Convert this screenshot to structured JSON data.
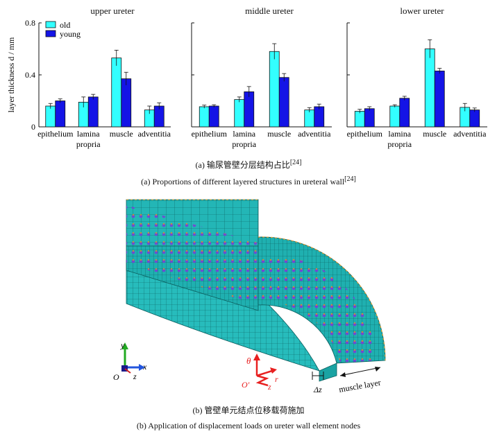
{
  "figure_a": {
    "caption_cn": "(a) 输尿管壁分层结构占比",
    "caption_cn_ref": "[24]",
    "caption_en": "(a) Proportions of different layered structures in ureteral wall",
    "caption_en_ref": "[24]"
  },
  "chart_data": [
    {
      "type": "bar",
      "title": "upper ureter",
      "ylabel": "layer thickness d / mm",
      "ylim": [
        0,
        0.8
      ],
      "yticks": [
        "0",
        "0.4",
        "0.8"
      ],
      "categories": [
        "epithelium",
        "lamina propria",
        "muscle",
        "adventitia"
      ],
      "series": [
        {
          "name": "old",
          "values": [
            0.16,
            0.19,
            0.53,
            0.13
          ],
          "errors": [
            0.02,
            0.04,
            0.06,
            0.03
          ]
        },
        {
          "name": "young",
          "values": [
            0.2,
            0.23,
            0.37,
            0.16
          ],
          "errors": [
            0.015,
            0.02,
            0.05,
            0.025
          ]
        }
      ],
      "legend": "top-left",
      "colors": {
        "old": "#33ffff",
        "young": "#1414e6"
      }
    },
    {
      "type": "bar",
      "title": "middle ureter",
      "ylim": [
        0,
        0.8
      ],
      "categories": [
        "epithelium",
        "lamina propria",
        "muscle",
        "adventitia"
      ],
      "series": [
        {
          "name": "old",
          "values": [
            0.155,
            0.21,
            0.58,
            0.13
          ],
          "errors": [
            0.012,
            0.02,
            0.06,
            0.018
          ]
        },
        {
          "name": "young",
          "values": [
            0.16,
            0.27,
            0.38,
            0.155
          ],
          "errors": [
            0.01,
            0.04,
            0.03,
            0.02
          ]
        }
      ],
      "colors": {
        "old": "#33ffff",
        "young": "#1414e6"
      }
    },
    {
      "type": "bar",
      "title": "lower ureter",
      "ylim": [
        0,
        0.8
      ],
      "categories": [
        "epithelium",
        "lamina propria",
        "muscle",
        "adventitia"
      ],
      "series": [
        {
          "name": "old",
          "values": [
            0.12,
            0.16,
            0.6,
            0.15
          ],
          "errors": [
            0.015,
            0.01,
            0.07,
            0.03
          ]
        },
        {
          "name": "young",
          "values": [
            0.14,
            0.22,
            0.43,
            0.13
          ],
          "errors": [
            0.015,
            0.015,
            0.02,
            0.015
          ]
        }
      ],
      "colors": {
        "old": "#33ffff",
        "young": "#1414e6"
      }
    }
  ],
  "figure_b": {
    "axes": {
      "y": "y",
      "x": "x",
      "z": "z",
      "origin": "O"
    },
    "local_axes": {
      "theta": "θ",
      "r": "r",
      "z": "z",
      "origin": "O′"
    },
    "delta_label": "Δz",
    "muscle_label": "muscle layer",
    "caption_cn": "(b) 管壁单元结点位移载荷施加",
    "caption_en": "(b) Application of displacement loads on ureter wall element nodes",
    "colors": {
      "mesh": "#1aa3a3",
      "load": "#7a3dd6",
      "axis_red": "#e82020",
      "y_axis": "#22aa22",
      "x_axis": "#2255dd"
    }
  }
}
